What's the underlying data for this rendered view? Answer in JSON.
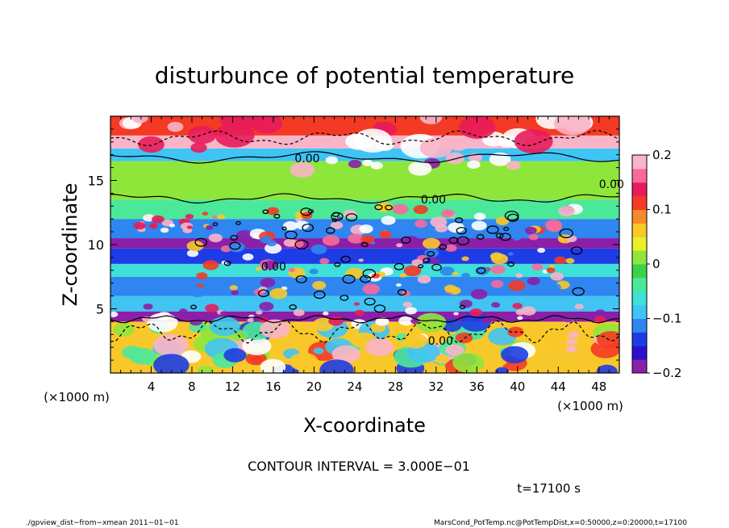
{
  "chart_data": {
    "type": "heatmap",
    "title": "disturbunce of potential temperature",
    "xlabel": "X-coordinate",
    "ylabel": "Z-coordinate",
    "x_unit_label": "(×1000 m)",
    "y_unit_label": "(×1000 m)",
    "xlim": [
      0,
      50
    ],
    "ylim": [
      0,
      20
    ],
    "x_ticks": [
      "4",
      "8",
      "12",
      "16",
      "20",
      "24",
      "28",
      "32",
      "36",
      "40",
      "44",
      "48"
    ],
    "y_ticks": [
      "5",
      "10",
      "15"
    ],
    "colorbar": {
      "range": [
        -0.2,
        0.2
      ],
      "tick_labels": [
        "0.2",
        "0.1",
        "0",
        "−0.1",
        "−0.2"
      ],
      "colors": [
        "#8a1fa8",
        "#2b12c8",
        "#1e3ce6",
        "#2f86f0",
        "#3fc4f4",
        "#3ee0d8",
        "#4ce89a",
        "#3ad24a",
        "#8fe63a",
        "#e8f02a",
        "#f8c82a",
        "#f8882a",
        "#f43a24",
        "#e81c5a",
        "#f86a9a",
        "#fab4c8"
      ]
    },
    "contour_labels": [
      "0.00",
      "0.00",
      "0.00",
      "0.00",
      "0.00"
    ],
    "contour_interval": "CONTOUR INTERVAL = 3.000E−01",
    "time_label": "t=17100 s",
    "bands": [
      {
        "z": [
          0,
          4
        ],
        "value": 0.05
      },
      {
        "z": [
          4,
          4.8
        ],
        "value": -0.22
      },
      {
        "z": [
          4.8,
          6.0
        ],
        "value": -0.08
      },
      {
        "z": [
          6.0,
          7.5
        ],
        "value": -0.12
      },
      {
        "z": [
          7.5,
          8.5
        ],
        "value": -0.06
      },
      {
        "z": [
          8.5,
          9.7
        ],
        "value": -0.13
      },
      {
        "z": [
          9.7,
          10.5
        ],
        "value": -0.2
      },
      {
        "z": [
          10.5,
          12.0
        ],
        "value": -0.11
      },
      {
        "z": [
          12.0,
          13.5
        ],
        "value": -0.04
      },
      {
        "z": [
          13.5,
          16.5
        ],
        "value": 0.0
      },
      {
        "z": [
          16.5,
          17.5
        ],
        "value": -0.1
      },
      {
        "z": [
          17.5,
          18.5
        ],
        "value": 0.2
      },
      {
        "z": [
          18.5,
          20
        ],
        "value": 0.12
      }
    ]
  },
  "footer": {
    "left": "./gpview_dist−from−xmean  2011−01−01",
    "right": "MarsCond_PotTemp.nc@PotTempDist,x=0:50000,z=0:20000,t=17100"
  }
}
